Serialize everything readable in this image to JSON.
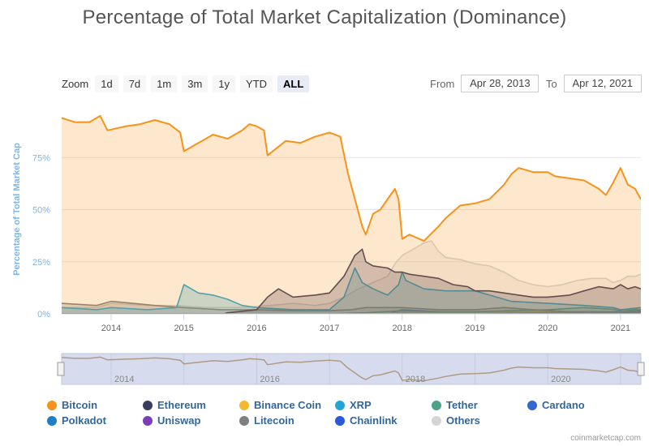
{
  "title": "Percentage of Total Market Capitalization (Dominance)",
  "zoom": {
    "label": "Zoom",
    "buttons": [
      "1d",
      "7d",
      "1m",
      "3m",
      "1y",
      "YTD",
      "ALL"
    ],
    "active": "ALL"
  },
  "range": {
    "from_label": "From",
    "from_value": "Apr 28, 2013",
    "to_label": "To",
    "to_value": "Apr 12, 2021"
  },
  "credit": "coinmarketcap.com",
  "navigator": {
    "tick_labels": [
      "2014",
      "2016",
      "2018",
      "2020"
    ]
  },
  "colors": {
    "Bitcoin": "#f7931a",
    "Ethereum": "#3c3c5c",
    "Binance Coin": "#f3ba2f",
    "XRP": "#23a6d5",
    "Tether": "#4aa387",
    "Cardano": "#3468d1",
    "Polkadot": "#1f7fc2",
    "Uniswap": "#7a3fb8",
    "Litecoin": "#7f7f7f",
    "Chainlink": "#2a5ada",
    "Others": "#d4d4d4"
  },
  "chart_data": {
    "type": "area",
    "ylabel": "Percentage of Total Market Cap",
    "y_ticks": [
      "0%",
      "25%",
      "50%",
      "75%"
    ],
    "x_ticks": [
      "2014",
      "2015",
      "2016",
      "2017",
      "2018",
      "2019",
      "2020",
      "2021"
    ],
    "ylim": [
      0,
      100
    ],
    "xlim": [
      2013.32,
      2021.28
    ],
    "legend": [
      "Bitcoin",
      "Ethereum",
      "Binance Coin",
      "XRP",
      "Tether",
      "Cardano",
      "Polkadot",
      "Uniswap",
      "Litecoin",
      "Chainlink",
      "Others"
    ],
    "legend_placement": "bottom",
    "grid": true,
    "series": [
      {
        "name": "Bitcoin",
        "points": [
          [
            2013.32,
            94
          ],
          [
            2013.5,
            92
          ],
          [
            2013.7,
            92
          ],
          [
            2013.85,
            95
          ],
          [
            2013.95,
            88
          ],
          [
            2014.2,
            90
          ],
          [
            2014.4,
            91
          ],
          [
            2014.6,
            93
          ],
          [
            2014.8,
            91
          ],
          [
            2014.95,
            87
          ],
          [
            2015.0,
            78
          ],
          [
            2015.2,
            82
          ],
          [
            2015.4,
            86
          ],
          [
            2015.6,
            84
          ],
          [
            2015.8,
            88
          ],
          [
            2015.9,
            91
          ],
          [
            2016.0,
            90
          ],
          [
            2016.1,
            88
          ],
          [
            2016.15,
            76
          ],
          [
            2016.4,
            83
          ],
          [
            2016.6,
            82
          ],
          [
            2016.8,
            85
          ],
          [
            2017.0,
            87
          ],
          [
            2017.15,
            85
          ],
          [
            2017.25,
            68
          ],
          [
            2017.35,
            55
          ],
          [
            2017.45,
            42
          ],
          [
            2017.5,
            38
          ],
          [
            2017.6,
            48
          ],
          [
            2017.7,
            50
          ],
          [
            2017.8,
            55
          ],
          [
            2017.9,
            60
          ],
          [
            2017.95,
            55
          ],
          [
            2018.0,
            36
          ],
          [
            2018.1,
            38
          ],
          [
            2018.3,
            35
          ],
          [
            2018.5,
            42
          ],
          [
            2018.6,
            46
          ],
          [
            2018.8,
            52
          ],
          [
            2019.0,
            53
          ],
          [
            2019.2,
            55
          ],
          [
            2019.4,
            62
          ],
          [
            2019.5,
            67
          ],
          [
            2019.6,
            70
          ],
          [
            2019.8,
            68
          ],
          [
            2020.0,
            68
          ],
          [
            2020.1,
            66
          ],
          [
            2020.3,
            65
          ],
          [
            2020.5,
            64
          ],
          [
            2020.7,
            60
          ],
          [
            2020.8,
            57
          ],
          [
            2020.9,
            63
          ],
          [
            2021.0,
            70
          ],
          [
            2021.1,
            62
          ],
          [
            2021.2,
            60
          ],
          [
            2021.28,
            55
          ]
        ]
      },
      {
        "name": "Ethereum",
        "points": [
          [
            2013.32,
            0
          ],
          [
            2015.55,
            0
          ],
          [
            2015.6,
            0.5
          ],
          [
            2016.0,
            2
          ],
          [
            2016.15,
            8
          ],
          [
            2016.3,
            12
          ],
          [
            2016.5,
            8
          ],
          [
            2016.8,
            9
          ],
          [
            2017.0,
            10
          ],
          [
            2017.2,
            18
          ],
          [
            2017.35,
            28
          ],
          [
            2017.45,
            31
          ],
          [
            2017.5,
            25
          ],
          [
            2017.6,
            23
          ],
          [
            2017.8,
            22
          ],
          [
            2017.9,
            20
          ],
          [
            2018.0,
            20
          ],
          [
            2018.1,
            19
          ],
          [
            2018.3,
            18
          ],
          [
            2018.5,
            17
          ],
          [
            2018.7,
            14
          ],
          [
            2018.9,
            13
          ],
          [
            2019.0,
            11
          ],
          [
            2019.2,
            11
          ],
          [
            2019.4,
            10
          ],
          [
            2019.6,
            9
          ],
          [
            2019.8,
            8
          ],
          [
            2020.0,
            8
          ],
          [
            2020.3,
            9
          ],
          [
            2020.5,
            11
          ],
          [
            2020.7,
            13
          ],
          [
            2020.9,
            12
          ],
          [
            2021.0,
            14
          ],
          [
            2021.1,
            12
          ],
          [
            2021.2,
            13
          ],
          [
            2021.28,
            12
          ]
        ]
      },
      {
        "name": "XRP",
        "points": [
          [
            2013.32,
            3
          ],
          [
            2013.8,
            2
          ],
          [
            2014.0,
            3
          ],
          [
            2014.5,
            2
          ],
          [
            2014.9,
            3
          ],
          [
            2015.0,
            14
          ],
          [
            2015.2,
            10
          ],
          [
            2015.4,
            9
          ],
          [
            2015.6,
            7
          ],
          [
            2015.8,
            4
          ],
          [
            2016.0,
            3
          ],
          [
            2016.5,
            2
          ],
          [
            2017.0,
            2
          ],
          [
            2017.2,
            8
          ],
          [
            2017.35,
            22
          ],
          [
            2017.45,
            15
          ],
          [
            2017.6,
            12
          ],
          [
            2017.8,
            9
          ],
          [
            2017.95,
            14
          ],
          [
            2018.0,
            20
          ],
          [
            2018.05,
            16
          ],
          [
            2018.3,
            12
          ],
          [
            2018.6,
            11
          ],
          [
            2018.9,
            11
          ],
          [
            2019.0,
            11
          ],
          [
            2019.5,
            6
          ],
          [
            2020.0,
            5
          ],
          [
            2020.5,
            4
          ],
          [
            2020.9,
            3
          ],
          [
            2021.0,
            2
          ],
          [
            2021.28,
            3
          ]
        ]
      },
      {
        "name": "Litecoin",
        "points": [
          [
            2013.32,
            5
          ],
          [
            2013.8,
            4
          ],
          [
            2014.0,
            6
          ],
          [
            2014.3,
            5
          ],
          [
            2014.6,
            4
          ],
          [
            2015.0,
            3
          ],
          [
            2015.5,
            2
          ],
          [
            2016.0,
            2
          ],
          [
            2016.5,
            1.5
          ],
          [
            2017.0,
            1.5
          ],
          [
            2017.3,
            2
          ],
          [
            2017.5,
            3
          ],
          [
            2018.0,
            3
          ],
          [
            2018.5,
            2
          ],
          [
            2019.0,
            2
          ],
          [
            2019.4,
            3
          ],
          [
            2019.8,
            2
          ],
          [
            2020.3,
            1
          ],
          [
            2021.28,
            1
          ]
        ]
      },
      {
        "name": "Tether",
        "points": [
          [
            2013.32,
            0
          ],
          [
            2017.0,
            0
          ],
          [
            2017.5,
            0.5
          ],
          [
            2018.0,
            1.5
          ],
          [
            2018.5,
            1
          ],
          [
            2019.0,
            1
          ],
          [
            2019.5,
            1.5
          ],
          [
            2020.0,
            2
          ],
          [
            2020.5,
            3
          ],
          [
            2021.0,
            2
          ],
          [
            2021.28,
            2
          ]
        ]
      },
      {
        "name": "Binance Coin",
        "points": [
          [
            2013.32,
            0
          ],
          [
            2017.5,
            0
          ],
          [
            2018.0,
            0.5
          ],
          [
            2019.0,
            0.5
          ],
          [
            2020.0,
            1
          ],
          [
            2021.0,
            1
          ],
          [
            2021.1,
            2
          ],
          [
            2021.28,
            3
          ]
        ]
      },
      {
        "name": "Cardano",
        "points": [
          [
            2013.32,
            0
          ],
          [
            2017.8,
            0
          ],
          [
            2018.0,
            2
          ],
          [
            2018.5,
            1
          ],
          [
            2019.0,
            0.5
          ],
          [
            2020.0,
            0.5
          ],
          [
            2020.9,
            1
          ],
          [
            2021.1,
            2
          ],
          [
            2021.28,
            2
          ]
        ]
      },
      {
        "name": "Polkadot",
        "points": [
          [
            2013.32,
            0
          ],
          [
            2020.6,
            0
          ],
          [
            2020.8,
            0.5
          ],
          [
            2021.0,
            1
          ],
          [
            2021.28,
            1.5
          ]
        ]
      },
      {
        "name": "Chainlink",
        "points": [
          [
            2013.32,
            0
          ],
          [
            2019.5,
            0
          ],
          [
            2020.0,
            0.5
          ],
          [
            2020.6,
            1
          ],
          [
            2021.0,
            1
          ],
          [
            2021.28,
            1
          ]
        ]
      },
      {
        "name": "Uniswap",
        "points": [
          [
            2013.32,
            0
          ],
          [
            2020.7,
            0
          ],
          [
            2020.9,
            0.3
          ],
          [
            2021.28,
            0.8
          ]
        ]
      },
      {
        "name": "Others",
        "points": [
          [
            2013.32,
            3
          ],
          [
            2013.8,
            3
          ],
          [
            2014.0,
            5
          ],
          [
            2014.5,
            4
          ],
          [
            2014.9,
            4
          ],
          [
            2015.3,
            3
          ],
          [
            2015.8,
            3
          ],
          [
            2016.2,
            4
          ],
          [
            2016.5,
            5
          ],
          [
            2016.8,
            4
          ],
          [
            2017.0,
            5
          ],
          [
            2017.2,
            8
          ],
          [
            2017.4,
            12
          ],
          [
            2017.6,
            15
          ],
          [
            2017.8,
            18
          ],
          [
            2017.9,
            24
          ],
          [
            2018.0,
            28
          ],
          [
            2018.1,
            30
          ],
          [
            2018.2,
            32
          ],
          [
            2018.3,
            34
          ],
          [
            2018.4,
            35
          ],
          [
            2018.5,
            30
          ],
          [
            2018.6,
            27
          ],
          [
            2018.8,
            26
          ],
          [
            2019.0,
            24
          ],
          [
            2019.2,
            23
          ],
          [
            2019.4,
            20
          ],
          [
            2019.6,
            16
          ],
          [
            2019.8,
            14
          ],
          [
            2020.0,
            13
          ],
          [
            2020.2,
            14
          ],
          [
            2020.4,
            16
          ],
          [
            2020.6,
            17
          ],
          [
            2020.8,
            17
          ],
          [
            2020.9,
            15
          ],
          [
            2021.0,
            16
          ],
          [
            2021.1,
            18
          ],
          [
            2021.2,
            18
          ],
          [
            2021.28,
            19
          ]
        ]
      }
    ]
  }
}
